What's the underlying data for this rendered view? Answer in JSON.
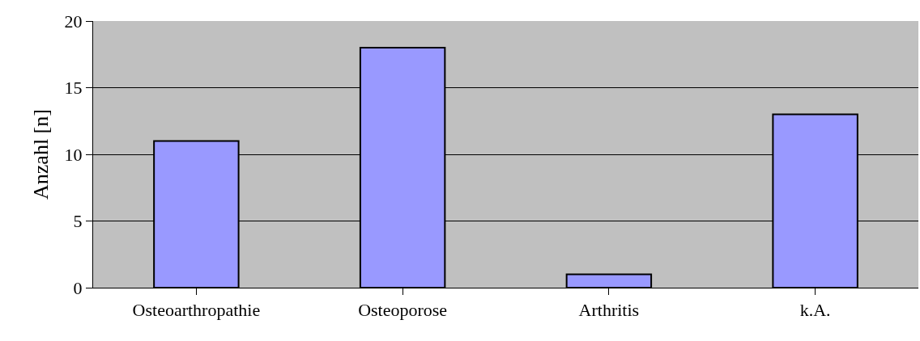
{
  "chart_data": {
    "type": "bar",
    "ylabel": "Anzahl [n]",
    "categories": [
      "Osteoarthropathie",
      "Osteoporose",
      "Arthritis",
      "k.A."
    ],
    "values": [
      11,
      18,
      1,
      13
    ],
    "color": "#9999ff",
    "ylim": [
      0,
      20
    ],
    "yticks": [
      0,
      5,
      10,
      15,
      20
    ],
    "grid": "y",
    "legend": false
  }
}
